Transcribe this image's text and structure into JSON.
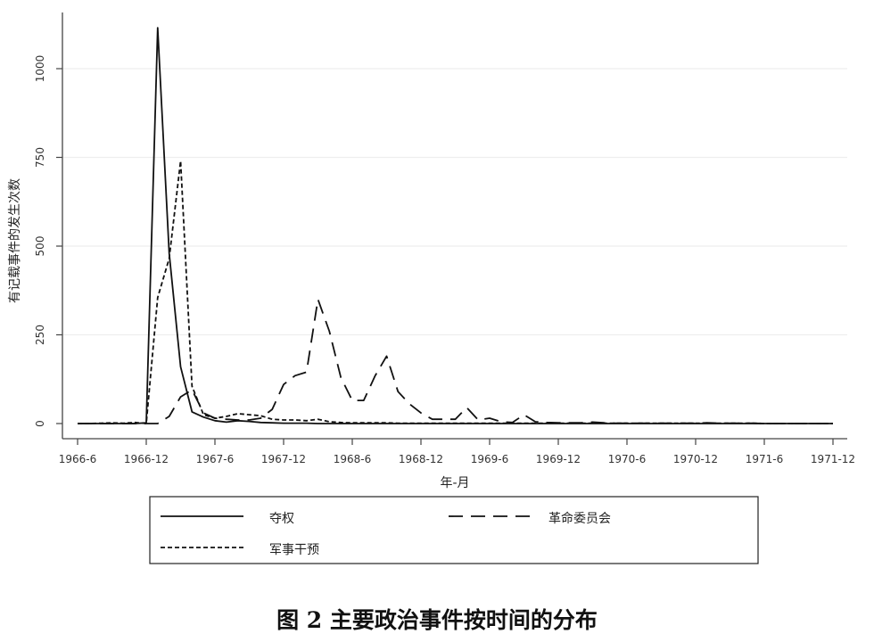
{
  "chart_data": {
    "type": "line",
    "title": "",
    "caption": "图 2  主要政治事件按时间的分布",
    "xlabel": "年-月",
    "ylabel": "有记载事件的发生次数",
    "x_start": "1966-6",
    "x_end": "1971-12",
    "x_unit": "month",
    "xticks": [
      "1966-6",
      "1966-12",
      "1967-6",
      "1967-12",
      "1968-6",
      "1968-12",
      "1969-6",
      "1969-12",
      "1970-6",
      "1970-12",
      "1971-6",
      "1971-12"
    ],
    "yticks": [
      0,
      250,
      500,
      750,
      1000
    ],
    "ylim": [
      0,
      1120
    ],
    "grid": "horizontal",
    "legend_position": "bottom",
    "series": [
      {
        "name": "夺权",
        "style": "solid",
        "values": [
          0,
          0,
          0,
          0,
          0,
          0,
          2,
          1115,
          480,
          160,
          33,
          18,
          8,
          4,
          8,
          6,
          3,
          2,
          1,
          1,
          1,
          0,
          0,
          0,
          0,
          0,
          0,
          0,
          0,
          0,
          0,
          0,
          0,
          0,
          0,
          0,
          0,
          0,
          0,
          0,
          0,
          0,
          0,
          0,
          0,
          0,
          0,
          0,
          0,
          0,
          0,
          0,
          0,
          0,
          0,
          0,
          0,
          0,
          0,
          0,
          0,
          0,
          0,
          0,
          0,
          0,
          0
        ]
      },
      {
        "name": "革命委员会",
        "style": "dashed",
        "values": [
          0,
          0,
          0,
          0,
          0,
          0,
          0,
          0,
          20,
          75,
          95,
          30,
          15,
          12,
          10,
          10,
          15,
          40,
          110,
          135,
          145,
          350,
          260,
          130,
          65,
          65,
          135,
          190,
          90,
          55,
          30,
          12,
          12,
          12,
          45,
          10,
          15,
          5,
          3,
          25,
          5,
          3,
          2,
          2,
          2,
          4,
          2,
          1,
          1,
          1,
          1,
          1,
          1,
          1,
          1,
          2,
          1,
          1,
          1,
          1,
          0,
          0,
          0,
          0,
          0,
          0,
          0
        ]
      },
      {
        "name": "军事干预",
        "style": "dotted",
        "values": [
          0,
          0,
          1,
          2,
          1,
          3,
          0,
          355,
          465,
          740,
          105,
          25,
          15,
          20,
          28,
          25,
          22,
          12,
          10,
          10,
          8,
          12,
          5,
          3,
          2,
          2,
          2,
          2,
          1,
          1,
          1,
          1,
          1,
          1,
          1,
          1,
          1,
          1,
          1,
          1,
          1,
          1,
          1,
          1,
          1,
          1,
          1,
          1,
          1,
          1,
          1,
          1,
          1,
          1,
          1,
          1,
          1,
          1,
          1,
          1,
          0,
          0,
          0,
          0,
          0,
          0,
          0
        ]
      }
    ]
  }
}
